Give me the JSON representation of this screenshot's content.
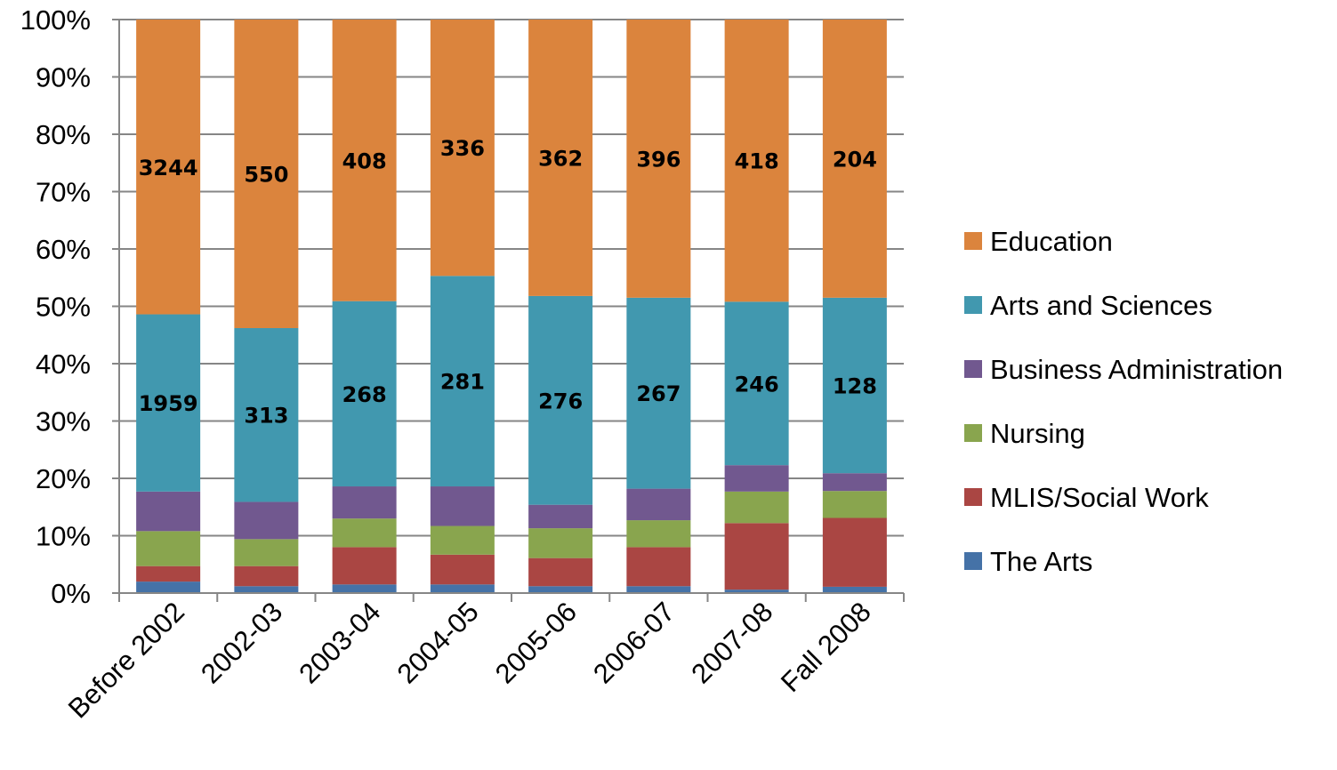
{
  "chart_data": {
    "type": "bar",
    "stacked": true,
    "percent": true,
    "categories": [
      "Before 2002",
      "2002-03",
      "2003-04",
      "2004-05",
      "2005-06",
      "2006-07",
      "2007-08",
      "Fall 2008"
    ],
    "series": [
      {
        "name": "The Arts",
        "color": "#4572A7",
        "share_pct": [
          2.0,
          1.2,
          1.5,
          1.5,
          1.2,
          1.2,
          0.6,
          1.1
        ]
      },
      {
        "name": "MLIS/Social Work",
        "color": "#AA4643",
        "share_pct": [
          2.7,
          3.5,
          6.5,
          5.2,
          4.9,
          6.8,
          11.6,
          12.0
        ]
      },
      {
        "name": "Nursing",
        "color": "#89A54E",
        "share_pct": [
          6.1,
          4.7,
          5.0,
          5.0,
          5.2,
          4.7,
          5.5,
          4.7
        ]
      },
      {
        "name": "Business Administration",
        "color": "#71588F",
        "share_pct": [
          6.9,
          6.5,
          5.6,
          6.9,
          4.1,
          5.5,
          4.6,
          3.1
        ]
      },
      {
        "name": "Arts and Sciences",
        "color": "#4198AF",
        "share_pct": [
          30.9,
          30.3,
          32.3,
          36.7,
          36.4,
          33.3,
          28.5,
          30.6
        ],
        "labels": [
          "1959",
          "313",
          "268",
          "281",
          "276",
          "267",
          "246",
          "128"
        ]
      },
      {
        "name": "Education",
        "color": "#DB843D",
        "share_pct": [
          51.4,
          53.8,
          49.1,
          44.7,
          48.2,
          48.5,
          49.2,
          48.5
        ],
        "labels": [
          "3244",
          "550",
          "408",
          "336",
          "362",
          "396",
          "418",
          "204"
        ]
      }
    ],
    "y_ticks": [
      "0%",
      "10%",
      "20%",
      "30%",
      "40%",
      "50%",
      "60%",
      "70%",
      "80%",
      "90%",
      "100%"
    ],
    "ylim": [
      0,
      100
    ],
    "grid": true,
    "legend_position": "right"
  }
}
